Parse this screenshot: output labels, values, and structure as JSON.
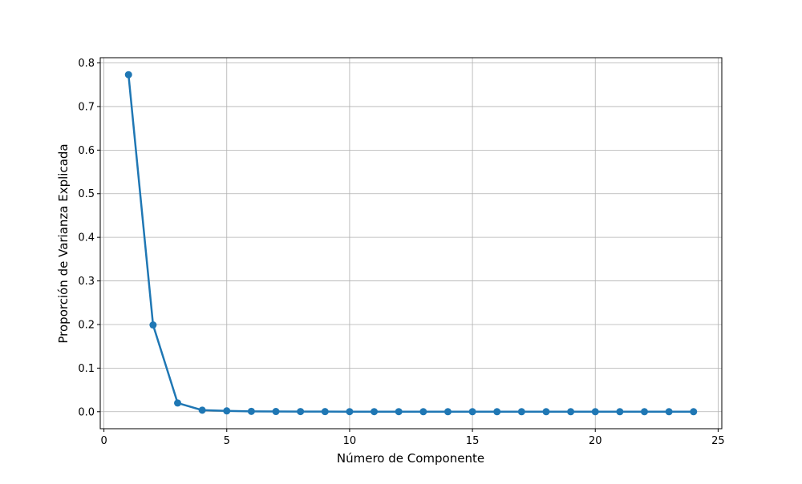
{
  "chart_data": {
    "type": "line",
    "title": "",
    "xlabel": "Número de Componente",
    "ylabel": "Proporción de Varianza Explicada",
    "xlim": [
      -0.15,
      25.15
    ],
    "ylim": [
      -0.039,
      0.812
    ],
    "xticks": [
      0,
      5,
      10,
      15,
      20,
      25
    ],
    "xtick_labels": [
      "0",
      "5",
      "10",
      "15",
      "20",
      "25"
    ],
    "yticks": [
      0.0,
      0.1,
      0.2,
      0.3,
      0.4,
      0.5,
      0.6,
      0.7,
      0.8
    ],
    "ytick_labels": [
      "0.0",
      "0.1",
      "0.2",
      "0.3",
      "0.4",
      "0.5",
      "0.6",
      "0.7",
      "0.8"
    ],
    "grid": true,
    "legend": false,
    "series": [
      {
        "color": "#1f77b4",
        "marker": "circle",
        "x": [
          1,
          2,
          3,
          4,
          5,
          6,
          7,
          8,
          9,
          10,
          11,
          12,
          13,
          14,
          15,
          16,
          17,
          18,
          19,
          20,
          21,
          22,
          23,
          24
        ],
        "y": [
          0.773,
          0.199,
          0.02,
          0.0035,
          0.0018,
          0.0008,
          0.0005,
          0.0003,
          0.0002,
          0.0001,
          0.0001,
          0.0001,
          0.0,
          0.0,
          0.0,
          0.0,
          0.0,
          0.0,
          0.0,
          0.0,
          0.0,
          0.0,
          0.0,
          0.0
        ]
      }
    ]
  }
}
